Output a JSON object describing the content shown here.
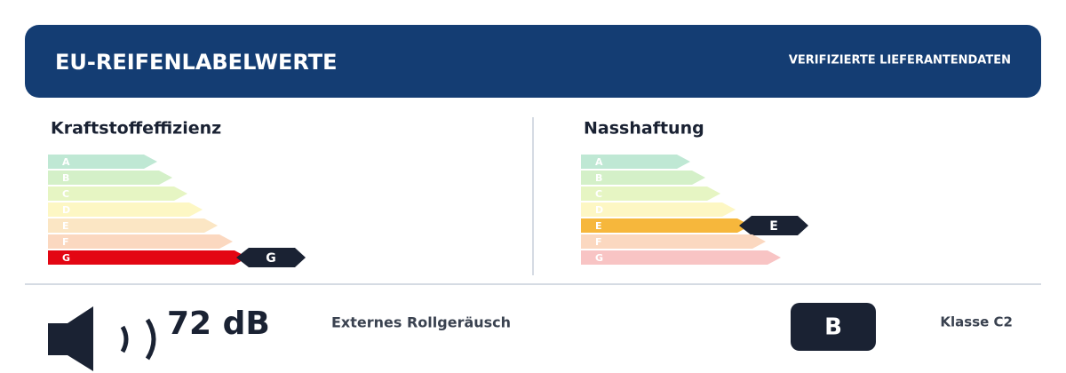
{
  "header": {
    "title": "EU-REIFENLABELWERTE",
    "subtitle": "VERIFIZIERTE LIEFERANTENDATEN"
  },
  "classes": [
    "A",
    "B",
    "C",
    "D",
    "E",
    "F",
    "G"
  ],
  "fuel": {
    "title": "Kraftstoffeffizienz",
    "rating": "G"
  },
  "wet": {
    "title": "Nasshaftung",
    "rating": "E"
  },
  "noise": {
    "value": "72 dB",
    "label": "Externes Rollgeräusch",
    "class": "B",
    "tyre_class": "Klasse C2"
  }
}
